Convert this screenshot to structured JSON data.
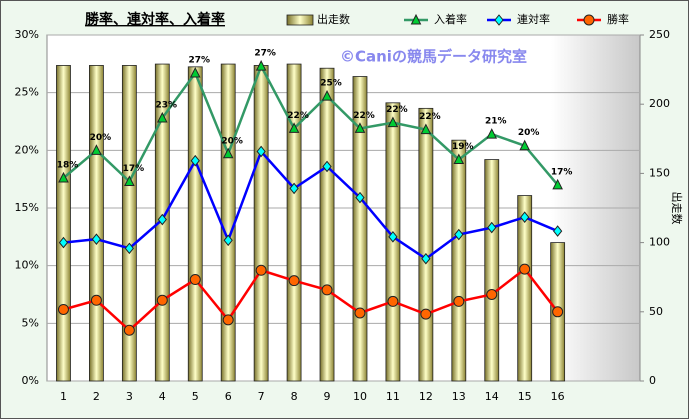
{
  "chart_data": {
    "type": "combo",
    "title": "勝率、連対率、入着率",
    "annotation": "©Caniの競馬データ研究室",
    "y2label": "出走数",
    "categories": [
      "1",
      "2",
      "3",
      "4",
      "5",
      "6",
      "7",
      "8",
      "9",
      "10",
      "11",
      "12",
      "13",
      "14",
      "15",
      "16",
      null,
      null
    ],
    "ylim": [
      0,
      30
    ],
    "yticks": [
      {
        "value": 0,
        "label": "0%"
      },
      {
        "value": 5,
        "label": "5%"
      },
      {
        "value": 10,
        "label": "10%"
      },
      {
        "value": 15,
        "label": "15%"
      },
      {
        "value": 20,
        "label": "20%"
      },
      {
        "value": 25,
        "label": "25%"
      },
      {
        "value": 30,
        "label": "30%"
      }
    ],
    "y2lim": [
      0,
      250
    ],
    "y2ticks": [
      0,
      50,
      100,
      150,
      200,
      250
    ],
    "grid": true,
    "legend": "top",
    "series": [
      {
        "name": "出走数",
        "type": "bar",
        "axis": "y2",
        "color": "#e8e28c",
        "values": [
          228,
          228,
          228,
          229,
          227,
          229,
          228,
          229,
          226,
          220,
          201,
          197,
          174,
          160,
          134,
          100,
          null,
          null
        ]
      },
      {
        "name": "入着率",
        "type": "line",
        "color": "#339966",
        "marker": "triangle",
        "marker_color": "#00cc33",
        "values": [
          17.6,
          20.0,
          17.3,
          22.8,
          26.7,
          19.7,
          27.3,
          21.9,
          24.7,
          21.9,
          22.4,
          21.8,
          19.2,
          21.4,
          20.4,
          17.0,
          null,
          null
        ],
        "value_labels": [
          "18%",
          "20%",
          "17%",
          "23%",
          "27%",
          "20%",
          "27%",
          "22%",
          "25%",
          "22%",
          "22%",
          "22%",
          "19%",
          "21%",
          "20%",
          "17%",
          null,
          null
        ]
      },
      {
        "name": "連対率",
        "type": "line",
        "color": "#0000ff",
        "marker": "diamond",
        "marker_color": "#00ffff",
        "values": [
          12.0,
          12.3,
          11.5,
          14.0,
          19.1,
          12.2,
          19.9,
          16.7,
          18.6,
          15.9,
          12.5,
          10.6,
          12.7,
          13.3,
          14.2,
          13.0,
          null,
          null
        ]
      },
      {
        "name": "勝率",
        "type": "line",
        "color": "#ff0000",
        "marker": "circle",
        "marker_color": "#ff6600",
        "values": [
          6.2,
          7.0,
          4.4,
          7.0,
          8.8,
          5.3,
          9.6,
          8.7,
          7.9,
          5.9,
          6.9,
          5.8,
          6.9,
          7.5,
          9.7,
          6.0,
          null,
          null
        ]
      }
    ]
  }
}
